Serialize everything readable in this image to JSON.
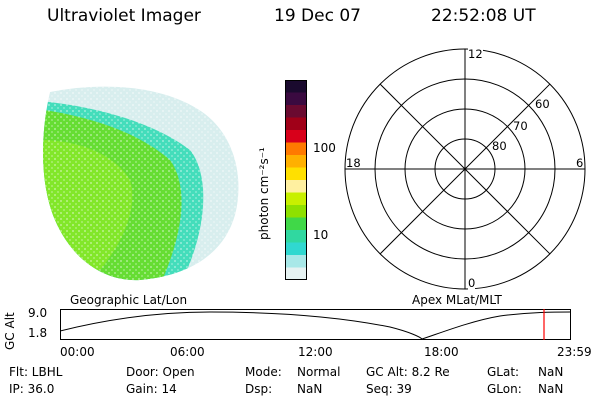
{
  "header": {
    "instrument": "Ultraviolet Imager",
    "date": "19 Dec 07",
    "time": "22:52:08 UT"
  },
  "colorbar": {
    "unit_label": "photon cm⁻²s⁻¹",
    "ticks": [
      "100",
      "10"
    ],
    "colors": [
      "#1a0a2e",
      "#3a0a40",
      "#6a0a30",
      "#a00018",
      "#d8001a",
      "#ff7a00",
      "#ffb000",
      "#ffe000",
      "#fff0a0",
      "#c8f000",
      "#8ee000",
      "#40d848",
      "#30d8a0",
      "#30d8d0",
      "#a8e8e8",
      "#e6f2f2"
    ]
  },
  "polar": {
    "labels": {
      "top": "12",
      "left": "18",
      "right": "6",
      "bottom": "0"
    },
    "rings": [
      "60",
      "70",
      "80"
    ]
  },
  "globe_colors": {
    "green": "#66dd33",
    "lime": "#99ee22",
    "cyan": "#44ddbb",
    "pale": "#d8eeee"
  },
  "map_labels": {
    "left": "Geographic Lat/Lon",
    "right": "Apex MLat/MLT"
  },
  "timeline": {
    "ylabel": "GC Alt",
    "ymax_label": "9.0",
    "ymin_label": "1.8",
    "ticks": [
      "00:00",
      "06:00",
      "12:00",
      "18:00",
      "23:59"
    ],
    "marker_color": "#ff0000"
  },
  "status": {
    "flt": "Flt: LBHL",
    "ip": "IP: 36.0",
    "door": "Door: Open",
    "gain": "Gain: 14",
    "mode_label": "Mode:",
    "mode_value": "Normal",
    "dsp_label": "Dsp:",
    "dsp_value": "NaN",
    "gcalt": "GC Alt: 8.2 Re",
    "seq": "Seq: 39",
    "glat_label": "GLat:",
    "glat_value": "NaN",
    "glon_label": "GLon:",
    "glon_value": "NaN"
  }
}
